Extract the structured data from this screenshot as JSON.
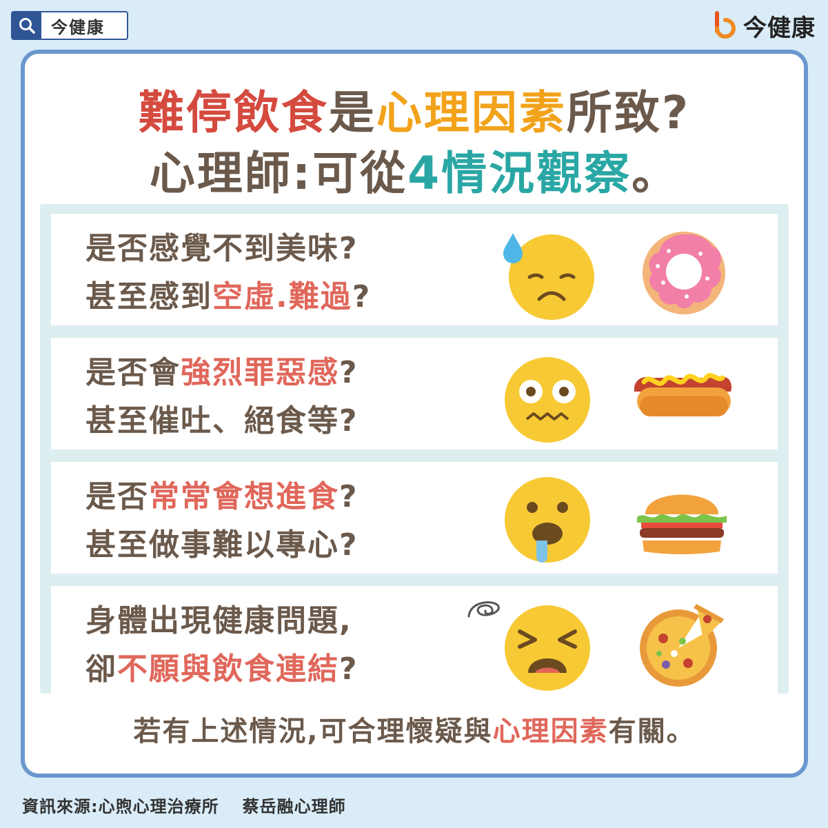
{
  "header": {
    "search_label": "今健康",
    "logo_text": "今健康"
  },
  "title": {
    "line1": [
      {
        "text": "難停飲食",
        "color": "red"
      },
      {
        "text": "是",
        "color": "brown"
      },
      {
        "text": "心理因素",
        "color": "orange"
      },
      {
        "text": "所致?",
        "color": "brown"
      }
    ],
    "line2": [
      {
        "text": "心理師:可從",
        "color": "brown"
      },
      {
        "text": "4情況觀察",
        "color": "teal"
      },
      {
        "text": "。",
        "color": "brown"
      }
    ]
  },
  "items": [
    {
      "line1": [
        {
          "text": "是否感覺不到美味?",
          "hl": false
        }
      ],
      "line2": [
        {
          "text": "甚至感到",
          "hl": false
        },
        {
          "text": "空虛.難過",
          "hl": true
        },
        {
          "text": "?",
          "hl": false
        }
      ],
      "emoji_icon": "sad-sweat-face-icon",
      "food_icon": "donut-icon"
    },
    {
      "line1": [
        {
          "text": "是否會",
          "hl": false
        },
        {
          "text": "強烈罪惡感",
          "hl": true
        },
        {
          "text": "?",
          "hl": false
        }
      ],
      "line2": [
        {
          "text": "甚至催吐、絕食等?",
          "hl": false
        }
      ],
      "emoji_icon": "anxious-face-icon",
      "food_icon": "hotdog-icon"
    },
    {
      "line1": [
        {
          "text": "是否",
          "hl": false
        },
        {
          "text": "常常會想進食",
          "hl": true
        },
        {
          "text": "?",
          "hl": false
        }
      ],
      "line2": [
        {
          "text": "甚至做事難以專心?",
          "hl": false
        }
      ],
      "emoji_icon": "drooling-face-icon",
      "food_icon": "burger-icon"
    },
    {
      "line1": [
        {
          "text": "身體出現健康問題,",
          "hl": false
        }
      ],
      "line2": [
        {
          "text": "卻",
          "hl": false
        },
        {
          "text": "不願與飲食連結",
          "hl": true
        },
        {
          "text": "?",
          "hl": false
        }
      ],
      "emoji_icon": "distressed-face-icon",
      "food_icon": "pizza-icon"
    }
  ],
  "footer": {
    "note": [
      {
        "text": "若有上述情況,可合理懷疑與",
        "hl": false
      },
      {
        "text": "心理因素",
        "hl": true
      },
      {
        "text": "有關。",
        "hl": false
      }
    ],
    "source_label": "資訊來源:心煦心理治療所",
    "source_person": "蔡岳融心理師"
  },
  "colors": {
    "red": "#d54a3f",
    "orange": "#f2a31b",
    "teal": "#2aa7a5",
    "brown": "#6b5a4c",
    "highlight": "#e0675b",
    "border_blue": "#6b97cf",
    "background": "#d9ecf7"
  }
}
